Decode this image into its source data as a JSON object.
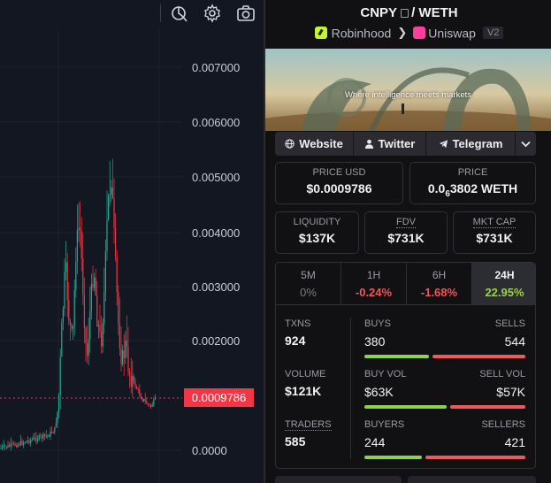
{
  "chart": {
    "current_price_tag": "0.0009786",
    "y_axis_labels": [
      "0.007000",
      "0.006000",
      "0.005000",
      "0.004000",
      "0.003000",
      "0.002000",
      "0.0000"
    ],
    "colors": {
      "up": "#22ab94",
      "down": "#f23645",
      "price_line": "#f23645",
      "background": "#131722"
    }
  },
  "toolbar": {
    "icons": [
      "replay-icon",
      "settings-icon",
      "camera-icon"
    ]
  },
  "pair": {
    "base": "CNPY",
    "separator": "/",
    "quote": "WETH",
    "chain": "Robinhood",
    "dex": "Uniswap",
    "version": "V2"
  },
  "banner": {
    "tagline": "Where intelligence meets markets"
  },
  "links": {
    "website": "Website",
    "twitter": "Twitter",
    "telegram": "Telegram"
  },
  "price": {
    "usd_label": "PRICE USD",
    "usd_value": "$0.0009786",
    "native_label": "PRICE",
    "native_prefix": "0.0",
    "native_zeros": "6",
    "native_value": "3802 WETH"
  },
  "stats": {
    "liquidity_label": "LIQUIDITY",
    "liquidity_value": "$137K",
    "fdv_label": "FDV",
    "fdv_value": "$731K",
    "mktcap_label": "MKT CAP",
    "mktcap_value": "$731K"
  },
  "timeframes": [
    {
      "label": "5M",
      "change": "0%",
      "color": "#7a7a82"
    },
    {
      "label": "1H",
      "change": "-0.24%",
      "color": "#f05656"
    },
    {
      "label": "6H",
      "change": "-1.68%",
      "color": "#f05656"
    },
    {
      "label": "24H",
      "change": "22.95%",
      "color": "#9ad14a"
    }
  ],
  "txn_stats": {
    "txns_label": "TXNS",
    "txns_value": "924",
    "volume_label": "VOLUME",
    "volume_value": "$121K",
    "traders_label": "TRADERS",
    "traders_value": "585",
    "buys_label": "BUYS",
    "buys_value": "380",
    "sells_label": "SELLS",
    "sells_value": "544",
    "buy_vol_label": "BUY VOL",
    "buy_vol_value": "$63K",
    "sell_vol_label": "SELL VOL",
    "sell_vol_value": "$57K",
    "buyers_label": "BUYERS",
    "buyers_value": "244",
    "sellers_label": "SELLERS",
    "sellers_value": "421",
    "buys_fraction": 0.41,
    "buy_vol_fraction": 0.52,
    "buyers_fraction": 0.367
  }
}
